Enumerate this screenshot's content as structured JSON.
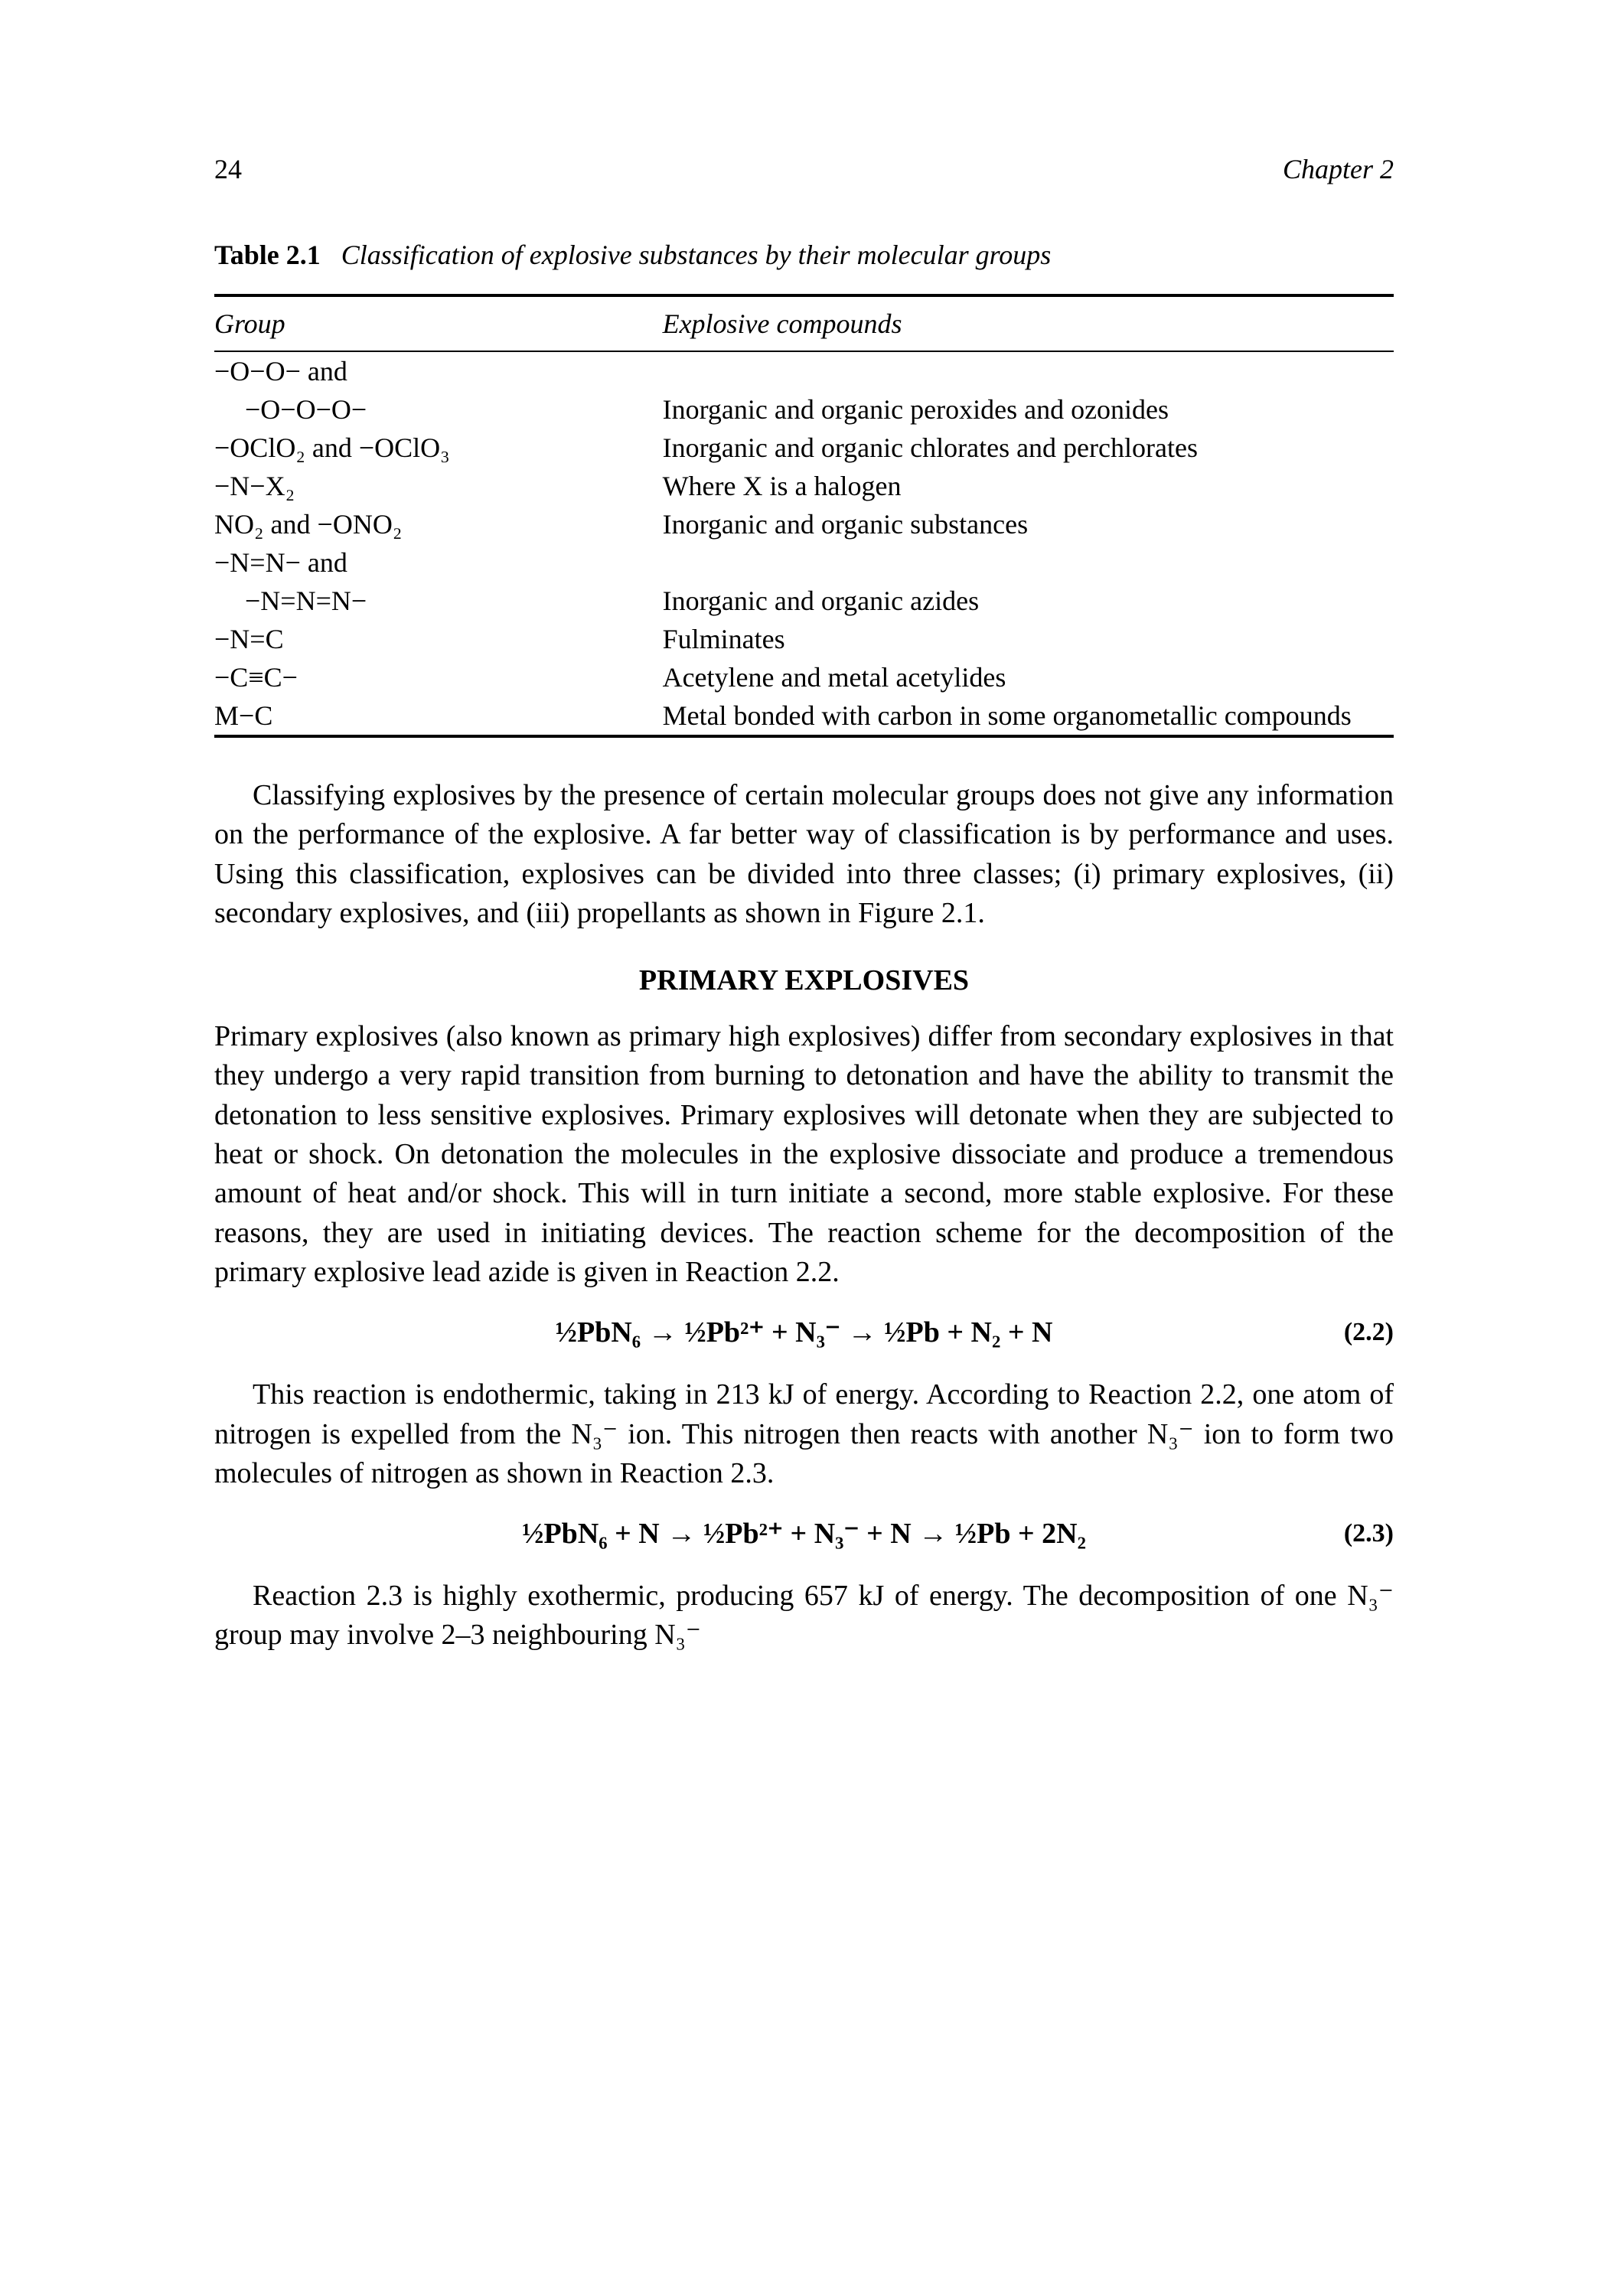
{
  "header": {
    "page_number": "24",
    "chapter_label": "Chapter 2"
  },
  "table": {
    "caption_bold": "Table 2.1",
    "caption_italic": "Classification of explosive substances by their molecular groups",
    "header_group": "Group",
    "header_compounds": "Explosive compounds",
    "rows": [
      {
        "group_raw": "−O−O− and",
        "compound": ""
      },
      {
        "group_raw": "  −O−O−O−",
        "compound": "Inorganic and organic peroxides and ozonides",
        "indent": true
      },
      {
        "group_raw": "−OClO₂ and −OClO₃",
        "compound": "Inorganic and organic chlorates and perchlorates"
      },
      {
        "group_raw": "−N−X₂",
        "compound": "Where X is a halogen"
      },
      {
        "group_raw": "NO₂ and −ONO₂",
        "compound": "Inorganic and organic substances"
      },
      {
        "group_raw": "−N=N− and",
        "compound": ""
      },
      {
        "group_raw": "  −N=N=N−",
        "compound": "Inorganic and organic azides",
        "indent": true
      },
      {
        "group_raw": "−N=C",
        "compound": "Fulminates"
      },
      {
        "group_raw": "−C≡C−",
        "compound": "Acetylene and metal acetylides"
      },
      {
        "group_raw": "M−C",
        "compound": "Metal bonded with carbon in some organometallic compounds"
      }
    ]
  },
  "paragraph1": "Classifying explosives by the presence of certain molecular groups does not give any information on the performance of the explosive. A far better way of classification is by performance and uses. Using this classification, explosives can be divided into three classes; (i) primary explosives, (ii) secondary explosives, and (iii) propellants as shown in Figure 2.1.",
  "section_heading": "PRIMARY EXPLOSIVES",
  "paragraph2": "Primary explosives (also known as primary high explosives) differ from secondary explosives in that they undergo a very rapid transition from burning to detonation and have the ability to transmit the detonation to less sensitive explosives. Primary explosives will detonate when they are subjected to heat or shock. On detonation the molecules in the explosive dissociate and produce a tremendous amount of heat and/or shock. This will in turn initiate a second, more stable explosive. For these reasons, they are used in initiating devices. The reaction scheme for the decomposition of the primary explosive lead azide is given in Reaction 2.2.",
  "equation22": {
    "text": "½PbN₆ → ½Pb²⁺ + N₃⁻ → ½Pb + N₂ + N",
    "number": "(2.2)"
  },
  "paragraph3": "This reaction is endothermic, taking in 213 kJ of energy. According to Reaction 2.2, one atom of nitrogen is expelled from the N₃⁻ ion. This nitrogen then reacts with another N₃⁻ ion to form two molecules of nitrogen as shown in Reaction 2.3.",
  "equation23": {
    "text": "½PbN₆ + N → ½Pb²⁺ + N₃⁻ + N → ½Pb + 2N₂",
    "number": "(2.3)"
  },
  "paragraph4": "Reaction 2.3 is highly exothermic, producing 657 kJ of energy. The decomposition of one N₃⁻ group may involve 2–3 neighbouring N₃⁻"
}
